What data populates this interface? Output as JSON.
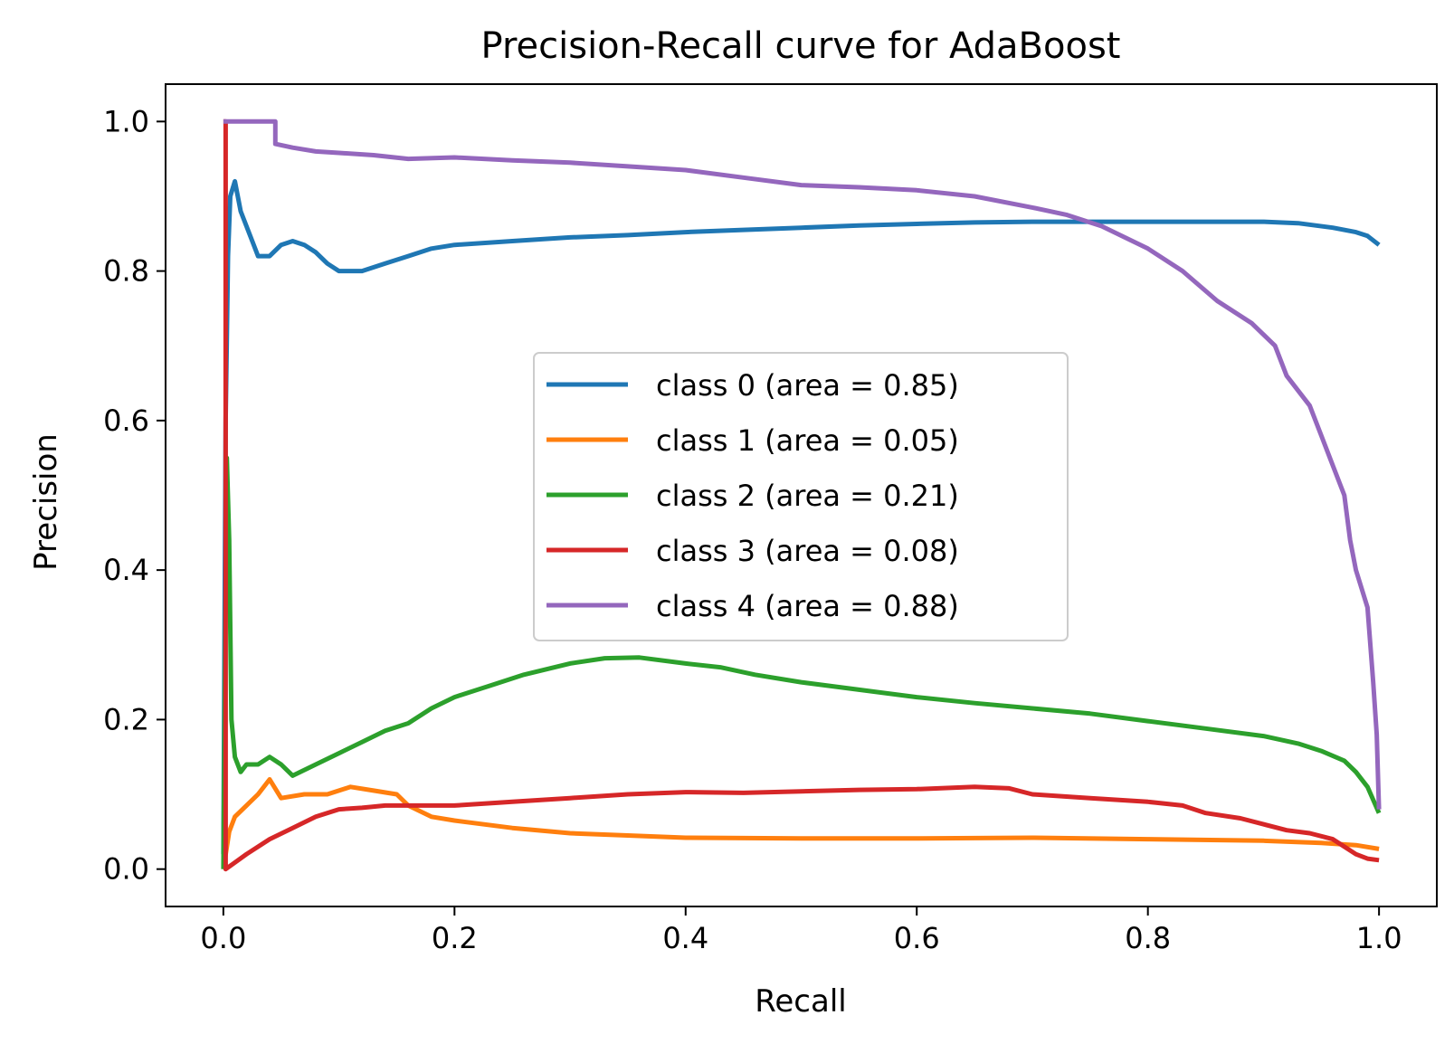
{
  "chart_data": {
    "type": "line",
    "title": "Precision-Recall curve for AdaBoost",
    "xlabel": "Recall",
    "ylabel": "Precision",
    "xlim": [
      -0.05,
      1.05
    ],
    "ylim": [
      -0.05,
      1.05
    ],
    "xticks": [
      "0.0",
      "0.2",
      "0.4",
      "0.6",
      "0.8",
      "1.0"
    ],
    "yticks": [
      "0.0",
      "0.2",
      "0.4",
      "0.6",
      "0.8",
      "1.0"
    ],
    "grid": false,
    "legend_position": "center-right",
    "series": [
      {
        "name": "class 0 (area = 0.85)",
        "color": "#1f77b4",
        "points": [
          [
            0,
            0.02
          ],
          [
            0.002,
            0.6
          ],
          [
            0.004,
            0.82
          ],
          [
            0.006,
            0.9
          ],
          [
            0.01,
            0.92
          ],
          [
            0.015,
            0.88
          ],
          [
            0.02,
            0.86
          ],
          [
            0.025,
            0.84
          ],
          [
            0.03,
            0.82
          ],
          [
            0.04,
            0.82
          ],
          [
            0.05,
            0.835
          ],
          [
            0.06,
            0.84
          ],
          [
            0.07,
            0.835
          ],
          [
            0.08,
            0.825
          ],
          [
            0.09,
            0.81
          ],
          [
            0.1,
            0.8
          ],
          [
            0.12,
            0.8
          ],
          [
            0.14,
            0.81
          ],
          [
            0.16,
            0.82
          ],
          [
            0.18,
            0.83
          ],
          [
            0.2,
            0.835
          ],
          [
            0.25,
            0.84
          ],
          [
            0.3,
            0.845
          ],
          [
            0.35,
            0.848
          ],
          [
            0.4,
            0.852
          ],
          [
            0.45,
            0.855
          ],
          [
            0.5,
            0.858
          ],
          [
            0.55,
            0.861
          ],
          [
            0.6,
            0.863
          ],
          [
            0.65,
            0.865
          ],
          [
            0.7,
            0.866
          ],
          [
            0.75,
            0.866
          ],
          [
            0.8,
            0.866
          ],
          [
            0.85,
            0.866
          ],
          [
            0.9,
            0.866
          ],
          [
            0.93,
            0.864
          ],
          [
            0.96,
            0.858
          ],
          [
            0.98,
            0.852
          ],
          [
            0.99,
            0.847
          ],
          [
            1.0,
            0.835
          ]
        ]
      },
      {
        "name": "class 1 (area = 0.05)",
        "color": "#ff7f0e",
        "points": [
          [
            0,
            0.0
          ],
          [
            0.005,
            0.05
          ],
          [
            0.01,
            0.07
          ],
          [
            0.02,
            0.085
          ],
          [
            0.03,
            0.1
          ],
          [
            0.04,
            0.12
          ],
          [
            0.05,
            0.095
          ],
          [
            0.07,
            0.1
          ],
          [
            0.09,
            0.1
          ],
          [
            0.11,
            0.11
          ],
          [
            0.13,
            0.105
          ],
          [
            0.15,
            0.1
          ],
          [
            0.16,
            0.085
          ],
          [
            0.18,
            0.07
          ],
          [
            0.2,
            0.065
          ],
          [
            0.25,
            0.055
          ],
          [
            0.3,
            0.048
          ],
          [
            0.35,
            0.045
          ],
          [
            0.4,
            0.042
          ],
          [
            0.5,
            0.041
          ],
          [
            0.6,
            0.041
          ],
          [
            0.7,
            0.042
          ],
          [
            0.8,
            0.04
          ],
          [
            0.9,
            0.038
          ],
          [
            0.95,
            0.035
          ],
          [
            0.98,
            0.032
          ],
          [
            1.0,
            0.027
          ]
        ]
      },
      {
        "name": "class 2 (area = 0.21)",
        "color": "#2ca02c",
        "points": [
          [
            0,
            0.0
          ],
          [
            0.003,
            0.55
          ],
          [
            0.005,
            0.44
          ],
          [
            0.007,
            0.2
          ],
          [
            0.01,
            0.15
          ],
          [
            0.015,
            0.13
          ],
          [
            0.02,
            0.14
          ],
          [
            0.03,
            0.14
          ],
          [
            0.04,
            0.15
          ],
          [
            0.05,
            0.14
          ],
          [
            0.06,
            0.125
          ],
          [
            0.08,
            0.14
          ],
          [
            0.1,
            0.155
          ],
          [
            0.12,
            0.17
          ],
          [
            0.14,
            0.185
          ],
          [
            0.16,
            0.195
          ],
          [
            0.18,
            0.215
          ],
          [
            0.2,
            0.23
          ],
          [
            0.23,
            0.245
          ],
          [
            0.26,
            0.26
          ],
          [
            0.3,
            0.275
          ],
          [
            0.33,
            0.282
          ],
          [
            0.36,
            0.283
          ],
          [
            0.4,
            0.275
          ],
          [
            0.43,
            0.27
          ],
          [
            0.46,
            0.26
          ],
          [
            0.5,
            0.25
          ],
          [
            0.55,
            0.24
          ],
          [
            0.6,
            0.23
          ],
          [
            0.65,
            0.222
          ],
          [
            0.7,
            0.215
          ],
          [
            0.75,
            0.208
          ],
          [
            0.8,
            0.198
          ],
          [
            0.85,
            0.188
          ],
          [
            0.9,
            0.178
          ],
          [
            0.93,
            0.168
          ],
          [
            0.95,
            0.158
          ],
          [
            0.97,
            0.145
          ],
          [
            0.98,
            0.13
          ],
          [
            0.99,
            0.11
          ],
          [
            1.0,
            0.075
          ]
        ]
      },
      {
        "name": "class 3 (area = 0.08)",
        "color": "#d62728",
        "points": [
          [
            0,
            1.0
          ],
          [
            0.002,
            1.0
          ],
          [
            0.002,
            0.0
          ],
          [
            0.02,
            0.02
          ],
          [
            0.04,
            0.04
          ],
          [
            0.06,
            0.055
          ],
          [
            0.08,
            0.07
          ],
          [
            0.1,
            0.08
          ],
          [
            0.12,
            0.082
          ],
          [
            0.14,
            0.085
          ],
          [
            0.16,
            0.085
          ],
          [
            0.18,
            0.085
          ],
          [
            0.2,
            0.085
          ],
          [
            0.25,
            0.09
          ],
          [
            0.3,
            0.095
          ],
          [
            0.35,
            0.1
          ],
          [
            0.4,
            0.103
          ],
          [
            0.45,
            0.102
          ],
          [
            0.5,
            0.104
          ],
          [
            0.55,
            0.106
          ],
          [
            0.6,
            0.107
          ],
          [
            0.65,
            0.11
          ],
          [
            0.68,
            0.108
          ],
          [
            0.7,
            0.1
          ],
          [
            0.75,
            0.095
          ],
          [
            0.8,
            0.09
          ],
          [
            0.83,
            0.085
          ],
          [
            0.85,
            0.075
          ],
          [
            0.88,
            0.068
          ],
          [
            0.9,
            0.06
          ],
          [
            0.92,
            0.052
          ],
          [
            0.94,
            0.048
          ],
          [
            0.96,
            0.04
          ],
          [
            0.97,
            0.03
          ],
          [
            0.98,
            0.02
          ],
          [
            0.99,
            0.014
          ],
          [
            1.0,
            0.012
          ]
        ]
      },
      {
        "name": "class 4 (area = 0.88)",
        "color": "#9467bd",
        "points": [
          [
            0,
            1.0
          ],
          [
            0.045,
            1.0
          ],
          [
            0.045,
            0.97
          ],
          [
            0.06,
            0.965
          ],
          [
            0.08,
            0.96
          ],
          [
            0.1,
            0.958
          ],
          [
            0.13,
            0.955
          ],
          [
            0.16,
            0.95
          ],
          [
            0.2,
            0.952
          ],
          [
            0.25,
            0.948
          ],
          [
            0.3,
            0.945
          ],
          [
            0.35,
            0.94
          ],
          [
            0.4,
            0.935
          ],
          [
            0.45,
            0.925
          ],
          [
            0.5,
            0.915
          ],
          [
            0.55,
            0.912
          ],
          [
            0.6,
            0.908
          ],
          [
            0.65,
            0.9
          ],
          [
            0.7,
            0.885
          ],
          [
            0.73,
            0.875
          ],
          [
            0.76,
            0.86
          ],
          [
            0.8,
            0.83
          ],
          [
            0.83,
            0.8
          ],
          [
            0.86,
            0.76
          ],
          [
            0.89,
            0.73
          ],
          [
            0.91,
            0.7
          ],
          [
            0.92,
            0.66
          ],
          [
            0.94,
            0.62
          ],
          [
            0.95,
            0.58
          ],
          [
            0.96,
            0.54
          ],
          [
            0.97,
            0.5
          ],
          [
            0.975,
            0.44
          ],
          [
            0.98,
            0.4
          ],
          [
            0.99,
            0.35
          ],
          [
            0.995,
            0.25
          ],
          [
            0.998,
            0.18
          ],
          [
            1.0,
            0.08
          ]
        ]
      }
    ]
  }
}
